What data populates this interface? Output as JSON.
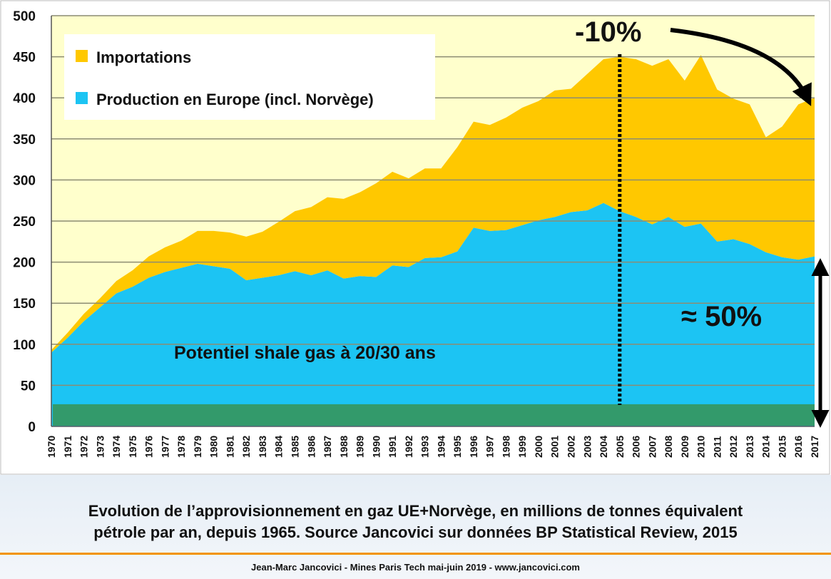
{
  "chart_data": {
    "type": "area",
    "stacked": true,
    "x": [
      1970,
      1971,
      1972,
      1973,
      1974,
      1975,
      1976,
      1977,
      1978,
      1979,
      1980,
      1981,
      1982,
      1983,
      1984,
      1985,
      1986,
      1987,
      1988,
      1989,
      1990,
      1991,
      1992,
      1993,
      1994,
      1995,
      1996,
      1997,
      1998,
      1999,
      2000,
      2001,
      2002,
      2003,
      2004,
      2005,
      2006,
      2007,
      2008,
      2009,
      2010,
      2011,
      2012,
      2013,
      2014,
      2015,
      2016,
      2017
    ],
    "series": [
      {
        "name": "Production en Europe (incl. Norvège)",
        "color": "#1cc4f3",
        "values": [
          90,
          108,
          128,
          145,
          162,
          170,
          181,
          188,
          193,
          198,
          195,
          192,
          178,
          181,
          184,
          189,
          184,
          190,
          180,
          183,
          182,
          196,
          194,
          205,
          206,
          213,
          242,
          238,
          239,
          245,
          251,
          255,
          261,
          263,
          272,
          262,
          255,
          246,
          255,
          243,
          247,
          225,
          228,
          222,
          212,
          206,
          203,
          207
        ]
      },
      {
        "name": "Importations",
        "color": "#ffc800",
        "values": [
          3,
          6,
          9,
          11,
          15,
          20,
          26,
          30,
          33,
          40,
          43,
          44,
          53,
          56,
          65,
          73,
          83,
          89,
          97,
          102,
          114,
          114,
          108,
          109,
          108,
          127,
          129,
          129,
          137,
          143,
          145,
          154,
          150,
          166,
          175,
          188,
          192,
          193,
          192,
          178,
          205,
          185,
          171,
          170,
          140,
          159,
          189,
          193
        ]
      }
    ],
    "totals": [
      93,
      114,
      137,
      156,
      177,
      190,
      207,
      218,
      226,
      238,
      238,
      236,
      231,
      237,
      249,
      262,
      267,
      279,
      277,
      285,
      296,
      310,
      302,
      314,
      314,
      340,
      371,
      367,
      376,
      388,
      396,
      409,
      411,
      429,
      447,
      450,
      447,
      439,
      447,
      421,
      452,
      410,
      399,
      392,
      352,
      365,
      392,
      400
    ],
    "ylim": [
      0,
      500
    ],
    "yticks": [
      0,
      50,
      100,
      150,
      200,
      250,
      300,
      350,
      400,
      450,
      500
    ],
    "xticks": [
      "1970",
      "1971",
      "1972",
      "1973",
      "1974",
      "1975",
      "1976",
      "1977",
      "1978",
      "1979",
      "1980",
      "1981",
      "1982",
      "1983",
      "1984",
      "1985",
      "1986",
      "1987",
      "1988",
      "1989",
      "1990",
      "1991",
      "1992",
      "1993",
      "1994",
      "1995",
      "1996",
      "1997",
      "1998",
      "1999",
      "2000",
      "2001",
      "2002",
      "2003",
      "2004",
      "2005",
      "2006",
      "2007",
      "2008",
      "2009",
      "2010",
      "2011",
      "2012",
      "2013",
      "2014",
      "2015",
      "2016",
      "2017"
    ],
    "grid": true,
    "legend_position": "top-left",
    "shale_band": {
      "label": "Potentiel shale gas à 20/30 ans",
      "y_top": 27,
      "color": "#339a6b"
    },
    "annotations": {
      "peak_line_year": 2005,
      "decline_label": "-10%",
      "share_label": "≈ 50%"
    },
    "colors": {
      "plot_background": "#ffffcc",
      "grid": "#8c8c73"
    }
  },
  "caption": {
    "line1": "Evolution de l’approvisionnement en gaz UE+Norvège, en millions de tonnes équivalent",
    "line2": "pétrole par an, depuis 1965. Source Jancovici sur données BP Statistical Review, 2015"
  },
  "footer": "Jean-Marc Jancovici - Mines Paris Tech mai-juin 2019 - www.jancovici.com"
}
